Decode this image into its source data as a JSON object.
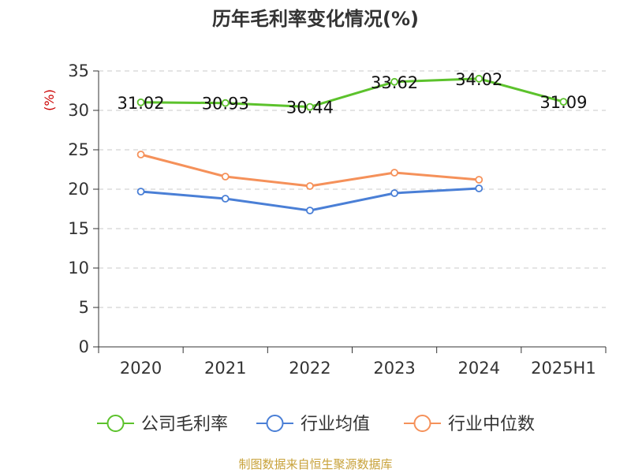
{
  "chart_data": {
    "type": "line",
    "title": "历年毛利率变化情况(%)",
    "ylabel": "(%)",
    "xlabel": "",
    "categories": [
      "2020",
      "2021",
      "2022",
      "2023",
      "2024",
      "2025H1"
    ],
    "ylim": [
      0,
      35
    ],
    "yticks": [
      0,
      5,
      10,
      15,
      20,
      25,
      30,
      35
    ],
    "grid": true,
    "legend_position": "bottom",
    "series": [
      {
        "name": "公司毛利率",
        "color": "#5cc22c",
        "values": [
          31.02,
          30.93,
          30.44,
          33.62,
          34.02,
          31.09
        ],
        "labels": [
          "31.02",
          "30.93",
          "30.44",
          "33.62",
          "34.02",
          "31.09"
        ]
      },
      {
        "name": "行业均值",
        "color": "#4a7fd6",
        "values": [
          19.7,
          18.8,
          17.3,
          19.5,
          20.1,
          null
        ]
      },
      {
        "name": "行业中位数",
        "color": "#f5915a",
        "values": [
          24.4,
          21.6,
          20.4,
          22.1,
          21.2,
          null
        ]
      }
    ]
  },
  "footer": {
    "source": "制图数据来自恒生聚源数据库"
  }
}
